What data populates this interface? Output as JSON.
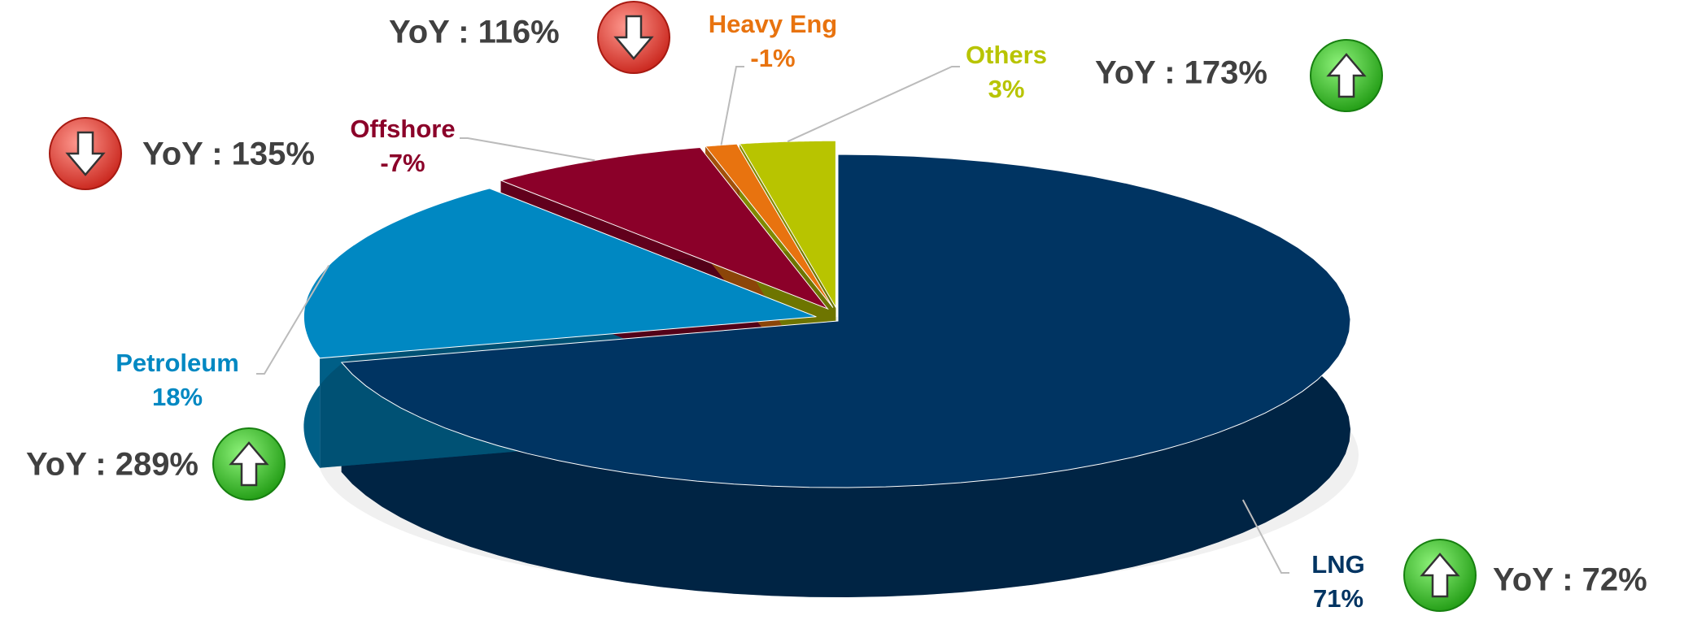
{
  "chart_data": {
    "type": "pie3d",
    "categories": [
      "LNG",
      "Petroleum",
      "Offshore",
      "Heavy Eng",
      "Others"
    ],
    "values": [
      71,
      18,
      -7,
      -1,
      3
    ],
    "value_labels": [
      "71%",
      "18%",
      "-7%",
      "-1%",
      "3%"
    ],
    "colors": [
      "#003462",
      "#0088c2",
      "#8b0029",
      "#e8730f",
      "#b8c400"
    ],
    "annotations": [
      {
        "text": "YoY : 72%",
        "direction": "up"
      },
      {
        "text": "YoY : 289%",
        "direction": "up"
      },
      {
        "text": "YoY : 135%",
        "direction": "down"
      },
      {
        "text": "YoY : 116%",
        "direction": "down"
      },
      {
        "text": "YoY : 173%",
        "direction": "up"
      }
    ]
  }
}
